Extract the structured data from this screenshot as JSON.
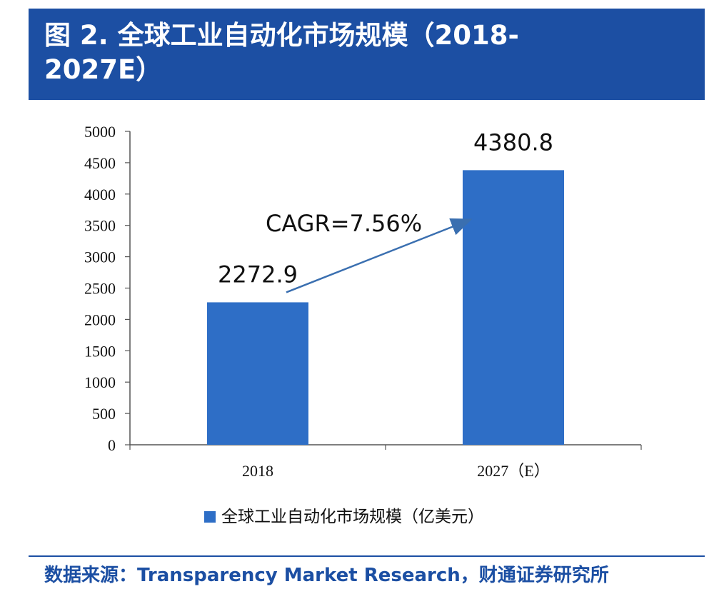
{
  "figure": {
    "title_line1": "图 2. 全球工业自动化市场规模（2018-",
    "title_line2": "2027E）",
    "source": "数据来源：Transparency Market Research，财通证券研究所",
    "accent_color": "#1c4fa3"
  },
  "chart_data": {
    "type": "bar",
    "categories": [
      "2018",
      "2027（E）"
    ],
    "series": [
      {
        "name": "全球工业自动化市场规模（亿美元）",
        "values": [
          2272.9,
          4380.8
        ],
        "color": "#2e6ec6"
      }
    ],
    "data_labels": [
      "2272.9",
      "4380.8"
    ],
    "yticks": [
      "0",
      "500",
      "1000",
      "1500",
      "2000",
      "2500",
      "3000",
      "3500",
      "4000",
      "4500",
      "5000"
    ],
    "ylim": [
      0,
      5000
    ],
    "grid": false,
    "legend": "bottom",
    "annotation": "CAGR=7.56%",
    "xlabel": "",
    "ylabel": ""
  }
}
